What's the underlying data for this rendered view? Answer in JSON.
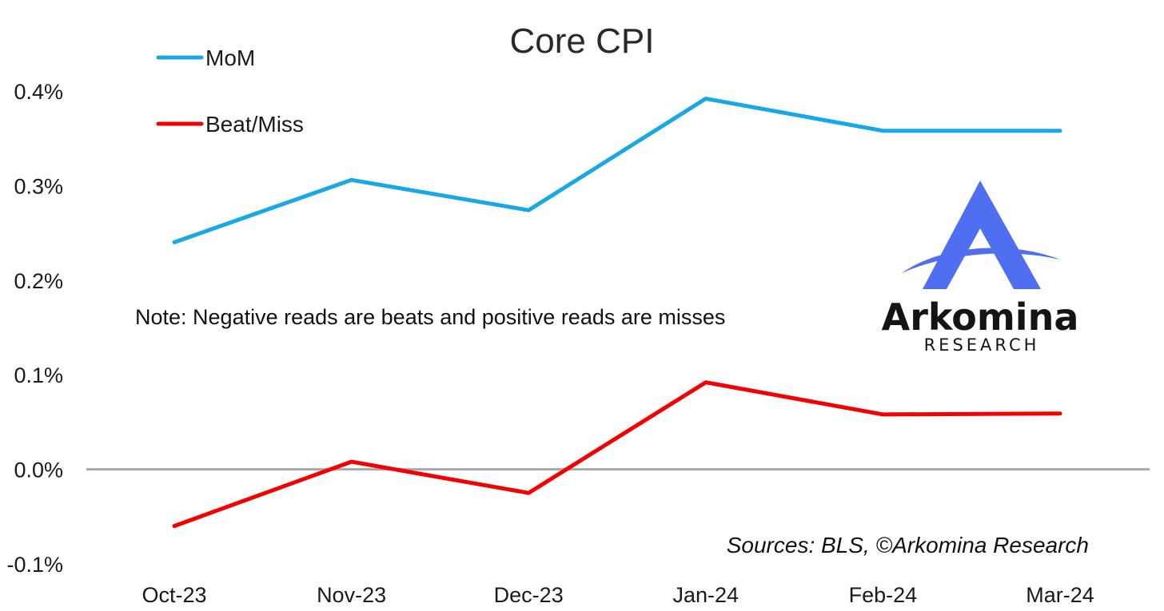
{
  "chart_data": {
    "type": "line",
    "title": "Core CPI",
    "categories": [
      "Oct-23",
      "Nov-23",
      "Dec-23",
      "Jan-24",
      "Feb-24",
      "Mar-24"
    ],
    "series": [
      {
        "name": "MoM",
        "color": "#18a8e6",
        "values": [
          0.24,
          0.306,
          0.274,
          0.392,
          0.358,
          0.358
        ]
      },
      {
        "name": "Beat/Miss",
        "color": "#f40000",
        "values": [
          -0.06,
          0.008,
          -0.025,
          0.092,
          0.058,
          0.059
        ]
      }
    ],
    "y_ticks": [
      "0.4%",
      "0.3%",
      "0.2%",
      "0.1%",
      "0.0%",
      "-0.1%"
    ],
    "y_tick_values": [
      0.4,
      0.3,
      0.2,
      0.1,
      0.0,
      -0.1
    ],
    "ylim": [
      -0.1,
      0.4
    ],
    "zero_line_color": "#a8a8a8",
    "grid": false,
    "legend_position": "top-left",
    "note": "Note: Negative reads are beats and positive reads are misses",
    "source": "Sources: BLS, ©Arkomina Research"
  },
  "logo": {
    "name": "Arkomina",
    "subtitle": "RESEARCH",
    "color": "#4f6ff0"
  }
}
